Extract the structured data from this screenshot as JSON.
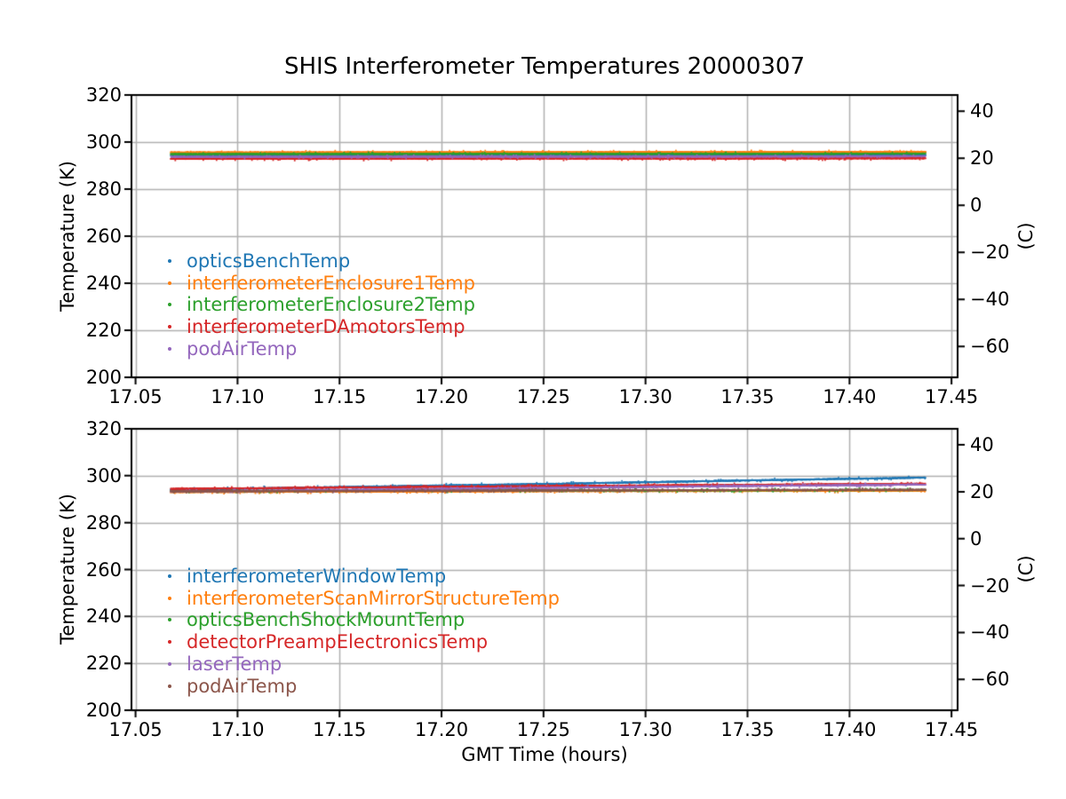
{
  "chart_data": {
    "type": "scatter",
    "title": "SHIS Interferometer Temperatures 20000307",
    "xlabel": "GMT Time (hours)",
    "ylabel_left": "Temperature (K)",
    "ylabel_right": "(C)",
    "grid": true,
    "grid_color": "#b0b0b0",
    "spine_color": "#000000",
    "background": "#ffffff",
    "xlim": [
      17.048,
      17.453
    ],
    "ylim_K": [
      200,
      320
    ],
    "x_data_range": [
      17.067,
      17.437
    ],
    "xticks": {
      "values": [
        17.05,
        17.1,
        17.15,
        17.2,
        17.25,
        17.3,
        17.35,
        17.4,
        17.45
      ],
      "labels": [
        "17.05",
        "17.10",
        "17.15",
        "17.20",
        "17.25",
        "17.30",
        "17.35",
        "17.40",
        "17.45"
      ]
    },
    "yticks_K": {
      "values": [
        200,
        220,
        240,
        260,
        280,
        300,
        320
      ],
      "labels": [
        "200",
        "220",
        "240",
        "260",
        "280",
        "300",
        "320"
      ]
    },
    "yticks_C": {
      "values": [
        40,
        20,
        0,
        -20,
        -40,
        -60
      ],
      "labels": [
        "40",
        "20",
        "0",
        "−20",
        "−40",
        "−60"
      ]
    },
    "x_points": [
      17.067,
      17.1595,
      17.252,
      17.3445,
      17.437
    ],
    "noise_sigma_K": 0.15,
    "outlier_fraction": 0.05,
    "charts": [
      {
        "id": "top",
        "legend_loc": "lower left inside axes",
        "series": [
          {
            "label": "opticsBenchTemp",
            "color": "#1f77b4",
            "values_K": [
              294.3,
              294.3,
              294.35,
              294.4,
              294.45
            ]
          },
          {
            "label": "interferometerEnclosure1Temp",
            "color": "#ff7f0e",
            "values_K": [
              295.6,
              295.65,
              295.7,
              295.75,
              295.85
            ]
          },
          {
            "label": "interferometerEnclosure2Temp",
            "color": "#2ca02c",
            "values_K": [
              294.9,
              294.95,
              295.0,
              295.0,
              295.1
            ]
          },
          {
            "label": "interferometerDAmotorsTemp",
            "color": "#d62728",
            "values_K": [
              292.9,
              292.95,
              293.0,
              293.0,
              293.1
            ]
          },
          {
            "label": "podAirTemp",
            "color": "#9467bd",
            "values_K": [
              293.7,
              293.75,
              293.8,
              293.85,
              293.95
            ]
          }
        ]
      },
      {
        "id": "bottom",
        "legend_loc": "lower left inside axes",
        "series": [
          {
            "label": "interferometerWindowTemp",
            "color": "#1f77b4",
            "values_K": [
              294.0,
              295.3,
              296.5,
              297.9,
              299.2
            ]
          },
          {
            "label": "interferometerScanMirrorStructureTemp",
            "color": "#ff7f0e",
            "values_K": [
              293.0,
              293.2,
              293.4,
              293.5,
              293.6
            ]
          },
          {
            "label": "opticsBenchShockMountTemp",
            "color": "#2ca02c",
            "values_K": [
              293.5,
              293.6,
              293.7,
              293.8,
              293.9
            ]
          },
          {
            "label": "detectorPreampElectronicsTemp",
            "color": "#d62728",
            "values_K": [
              294.4,
              295.0,
              295.6,
              296.1,
              296.6
            ]
          },
          {
            "label": "laserTemp",
            "color": "#9467bd",
            "values_K": [
              293.2,
              294.0,
              294.8,
              295.6,
              296.2
            ]
          },
          {
            "label": "podAirTemp",
            "color": "#8c564b",
            "values_K": [
              293.3,
              293.5,
              293.7,
              293.9,
              294.0
            ]
          }
        ]
      }
    ]
  }
}
